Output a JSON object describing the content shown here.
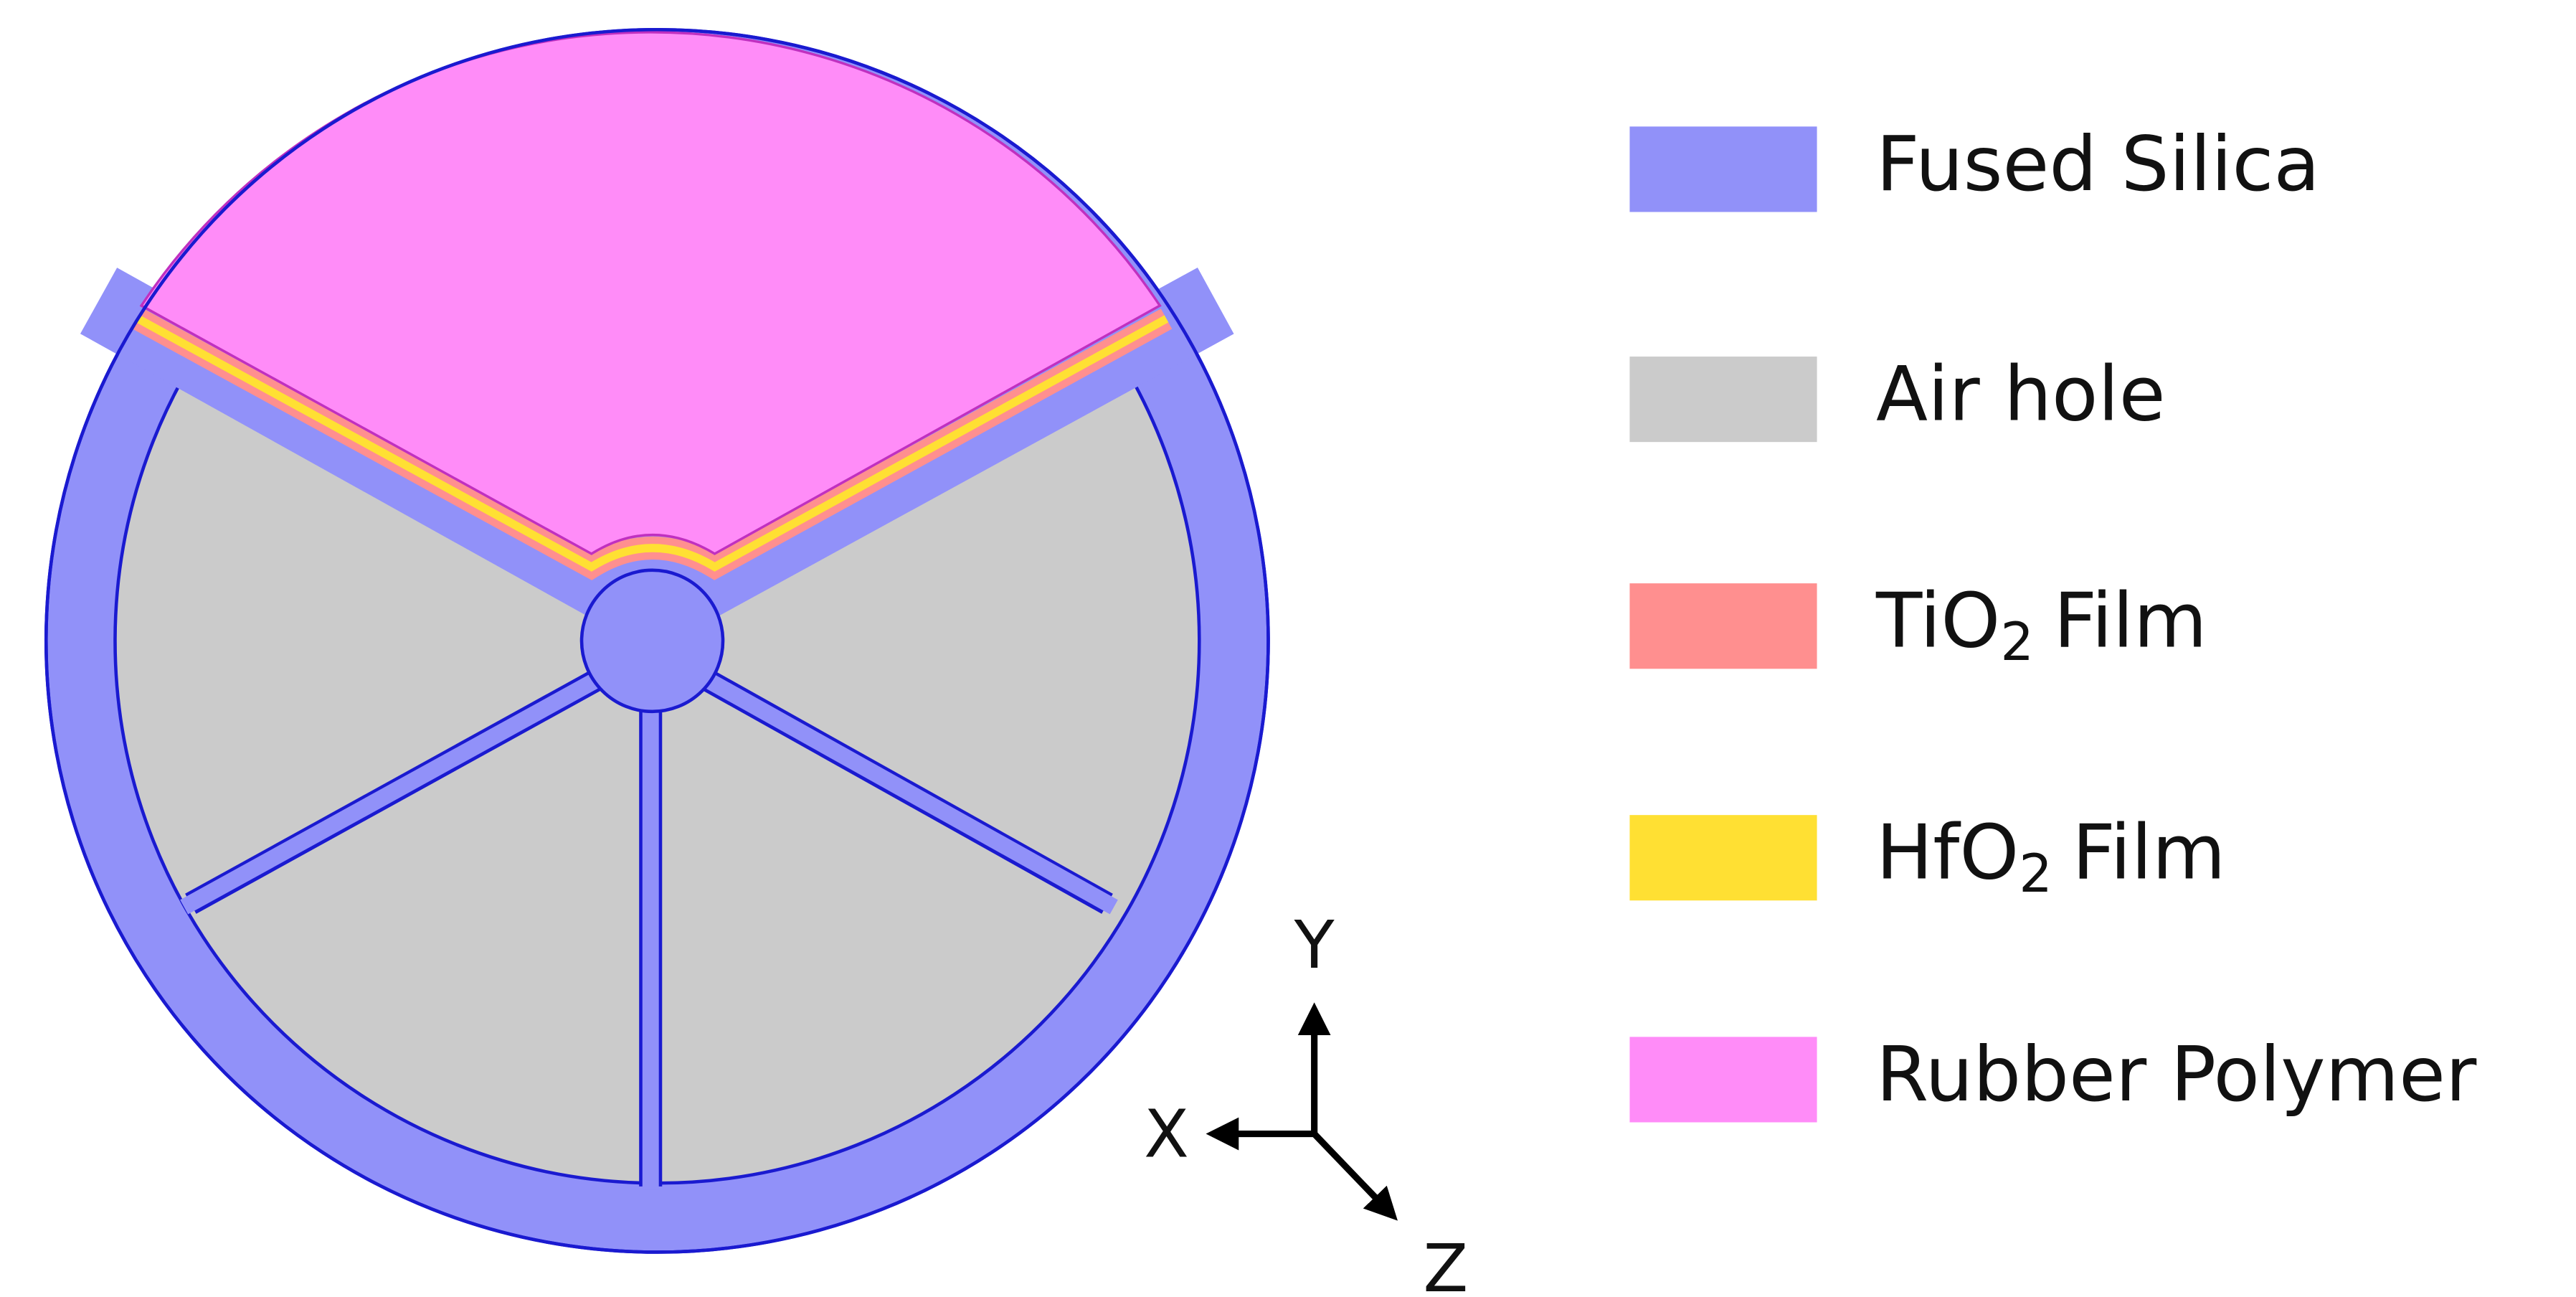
{
  "legend": [
    {
      "label": "Fused Silica",
      "color": "#9191f9"
    },
    {
      "label": "Air hole",
      "color": "#cbcbcb"
    },
    {
      "label": "TiO",
      "subscript": "2",
      "suffix": "Film",
      "color": "#ff8f8f"
    },
    {
      "label": "HfO",
      "subscript": "2",
      "suffix": "Film",
      "color": "#ffe033"
    },
    {
      "label": "Rubber Polymer",
      "color": "#ff8cf8"
    }
  ],
  "axes": {
    "x": "X",
    "y": "Y",
    "z": "Z"
  }
}
